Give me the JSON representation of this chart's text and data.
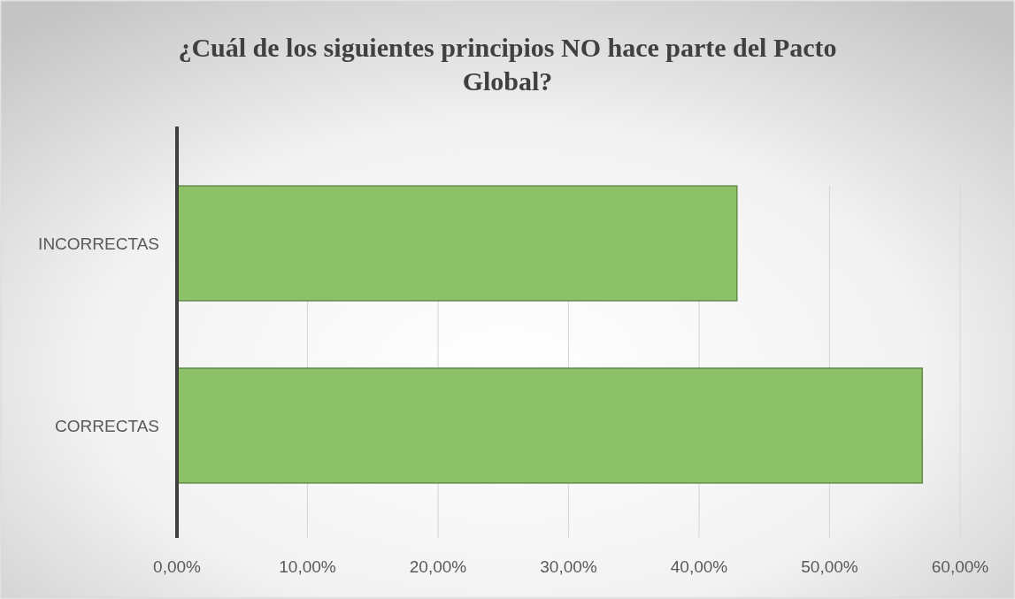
{
  "chart_data": {
    "type": "bar",
    "orientation": "horizontal",
    "title": "¿Cuál de los siguientes principios NO hace parte del Pacto Global?",
    "categories": [
      "INCORRECTAS",
      "CORRECTAS"
    ],
    "values": [
      42.9,
      57.1
    ],
    "color": "#8cc168",
    "xlim": [
      0,
      60
    ],
    "xticks": [
      {
        "value": 0,
        "label": "0,00%"
      },
      {
        "value": 10,
        "label": "10,00%"
      },
      {
        "value": 20,
        "label": "20,00%"
      },
      {
        "value": 30,
        "label": "30,00%"
      },
      {
        "value": 40,
        "label": "40,00%"
      },
      {
        "value": 50,
        "label": "50,00%"
      },
      {
        "value": 60,
        "label": "60,00%"
      }
    ],
    "grid": "x"
  }
}
